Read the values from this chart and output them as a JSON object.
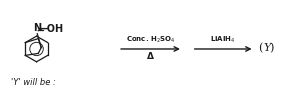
{
  "background_color": "#ffffff",
  "text_color": "#1a1a1a",
  "label_bottom": "'Y' will be :",
  "arrow1_label_top": "Conc. H$_2$SO$_4$",
  "arrow1_label_bottom": "Δ",
  "arrow2_label_top": "LiAlH$_4$",
  "product_label": "(Y)",
  "figsize": [
    2.96,
    0.95
  ],
  "dpi": 100
}
